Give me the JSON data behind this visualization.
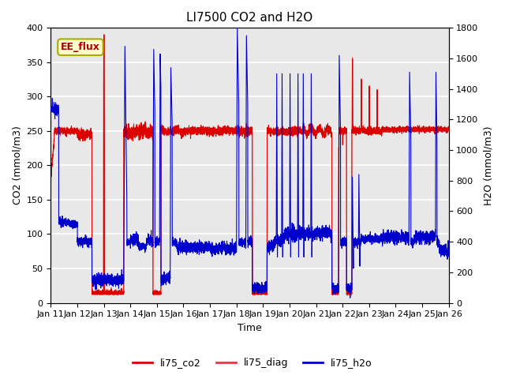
{
  "title": "LI7500 CO2 and H2O",
  "xlabel": "Time",
  "ylabel_left": "CO2 (mmol/m3)",
  "ylabel_right": "H2O (mmol/m3)",
  "ylim_left": [
    0,
    400
  ],
  "ylim_right": [
    0,
    1800
  ],
  "xtick_labels": [
    "Jan 11",
    "Jan 12",
    "Jan 13",
    "Jan 14",
    "Jan 15",
    "Jan 16",
    "Jan 17",
    "Jan 18",
    "Jan 19",
    "Jan 20",
    "Jan 21",
    "Jan 22",
    "Jan 23",
    "Jan 24",
    "Jan 25",
    "Jan 26"
  ],
  "legend_labels": [
    "li75_co2",
    "li75_diag",
    "li75_h2o"
  ],
  "legend_colors": [
    "#dd0000",
    "#cc4444",
    "#0000cc"
  ],
  "annotation_text": "EE_flux",
  "annotation_bg": "#ffffcc",
  "annotation_border": "#aaaa00",
  "background_color": "#e8e8e8",
  "grid_color": "#ffffff",
  "co2_color": "#dd0000",
  "diag_color": "#dd0000",
  "h2o_color": "#0000cc",
  "n_points": 5000
}
